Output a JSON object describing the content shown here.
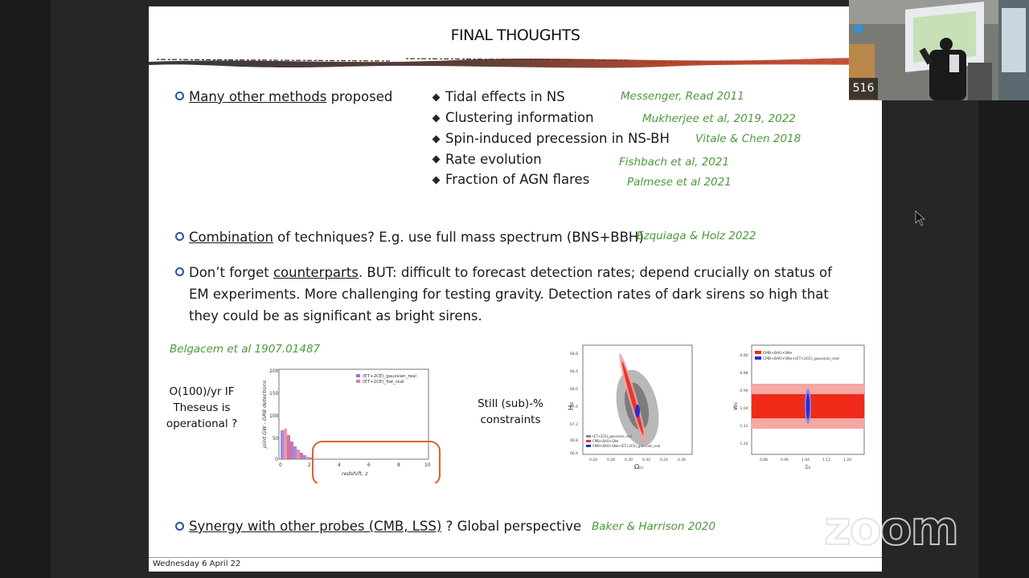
{
  "slide": {
    "title": "FINAL THOUGHTS",
    "bullet1": {
      "link": "Many other methods",
      "rest": " proposed"
    },
    "methods": [
      {
        "label": "Tidal effects in NS",
        "cite": "Messenger, Read 2011"
      },
      {
        "label": "Clustering information",
        "cite": "Mukherjee et al, 2019,  2022"
      },
      {
        "label": "Spin-induced precession in NS-BH",
        "cite": "Vitale & Chen 2018"
      },
      {
        "label": "Rate evolution",
        "cite": "Fishbach et al, 2021"
      },
      {
        "label": "Fraction of AGN flares",
        "cite": "Palmese et al 2021"
      }
    ],
    "bullet2": {
      "link": "Combination",
      "rest": " of techniques? E.g. use full mass spectrum (BNS+BBH)",
      "cite": "Ezquiaga & Holz 2022"
    },
    "bullet3": {
      "pre": "Don’t forget ",
      "link": "counterparts",
      "line1_rest": ". BUT: difficult to forecast detection rates; depend crucially on status of",
      "line2": "EM experiments. More challenging for testing gravity. Detection rates of dark sirens so high that",
      "line3": "they could be as significant as bright sirens."
    },
    "fig_cite": "Belgacem et al 1907.01487",
    "o100_line1": "O(100)/yr IF",
    "o100_line2": "Theseus is",
    "o100_line3": "operational ?",
    "still_line1": "Still (sub)-%",
    "still_line2": "constraints",
    "bullet4": {
      "link": "Synergy with other probes (CMB, LSS)",
      "rest": " ? Global perspective",
      "cite": "Baker & Harrison 2020"
    },
    "footer": "Wednesday 6 April 22"
  },
  "hist": {
    "ylabel": "joint GW - GRB detections",
    "xlabel": "redshift, z",
    "legend": [
      "(ET+2CE)_gaussian_real",
      "(ET+2CE)_flat_real"
    ],
    "yticks": [
      "200",
      "150",
      "100",
      "50",
      "0"
    ],
    "xticks": [
      "0",
      "2",
      "4",
      "6",
      "8",
      "10"
    ],
    "colors": {
      "gaussian": "#8a7ce0",
      "flat": "#e87f95"
    }
  },
  "contour": {
    "ylabel": "H₀",
    "xlabel": "Ωₘ",
    "xticks": [
      "0.24",
      "0.28",
      "0.30",
      "0.32",
      "0.34",
      "0.36"
    ],
    "yticks": [
      "68.8",
      "68.4",
      "68.0",
      "67.6",
      "67.2",
      "66.8",
      "66.4"
    ],
    "legend": [
      "(ET+2CE)_gaussian_real",
      "CMB+BAO+SNe",
      "CMB+BAO+SNe+(ET+2CE)_gaussian_real"
    ]
  },
  "w0": {
    "ylabel": "w₀",
    "xlabel": "Ξ₀",
    "xticks": [
      "0.88",
      "0.96",
      "1.04",
      "1.12",
      "1.20"
    ],
    "yticks": [
      "-0.80",
      "-0.88",
      "-0.96",
      "-1.04",
      "-1.12",
      "-1.20"
    ],
    "legend": [
      "CMB+BAO+SNe",
      "CMB+BAO+SNe+(ET+2CE)_gaussian_real"
    ]
  },
  "video": {
    "participant_count": "516",
    "watermark": "zoom"
  }
}
